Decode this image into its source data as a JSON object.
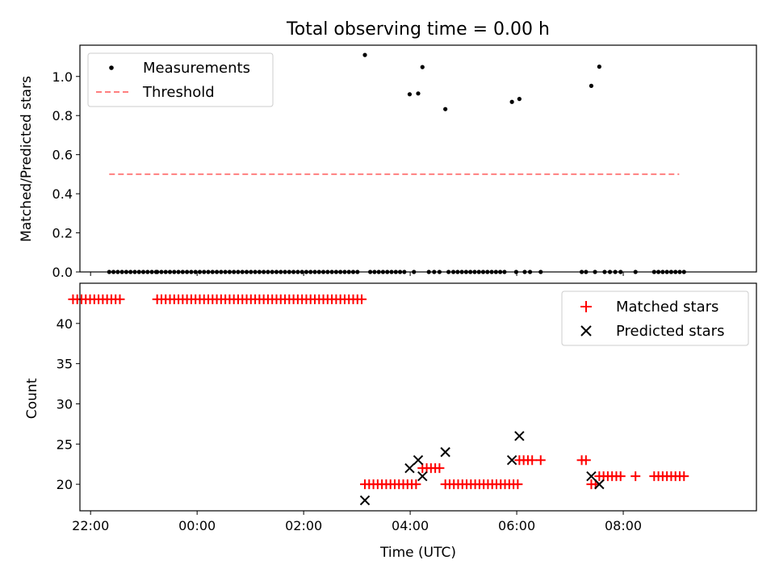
{
  "title": "Total observing time = 0.00 h",
  "chart_data": [
    {
      "type": "scatter",
      "ylabel": "Matched/Predicted stars",
      "xlim": [
        -2.2,
        10.5
      ],
      "ylim": [
        0,
        1.16
      ],
      "yticks": [
        0.0,
        0.2,
        0.4,
        0.6,
        0.8,
        1.0
      ],
      "ytick_labels": [
        "0.0",
        "0.2",
        "0.4",
        "0.6",
        "0.8",
        "1.0"
      ],
      "legend_position": "top-left",
      "series": [
        {
          "name": "Measurements",
          "marker": "dot",
          "color": "#000000",
          "x": [
            -1.65,
            -1.57,
            -1.49,
            -1.41,
            -1.33,
            -1.25,
            -1.17,
            -1.09,
            -1.01,
            -0.93,
            -0.85,
            -0.77,
            -0.75,
            -0.67,
            -0.59,
            -0.51,
            -0.43,
            -0.35,
            -0.27,
            -0.19,
            -0.11,
            -0.03,
            0.05,
            0.13,
            0.21,
            0.29,
            0.37,
            0.45,
            0.53,
            0.61,
            0.69,
            0.77,
            0.85,
            0.93,
            1.01,
            1.09,
            1.17,
            1.25,
            1.33,
            1.41,
            1.49,
            1.57,
            1.65,
            1.73,
            1.81,
            1.89,
            1.97,
            2.05,
            2.13,
            2.21,
            2.29,
            2.37,
            2.45,
            2.53,
            2.61,
            2.69,
            2.77,
            2.85,
            2.93,
            3.01,
            3.15,
            3.25,
            3.33,
            3.41,
            3.49,
            3.57,
            3.65,
            3.73,
            3.81,
            3.89,
            3.99,
            4.07,
            4.15,
            4.23,
            4.35,
            4.45,
            4.55,
            4.66,
            4.72,
            4.81,
            4.89,
            4.97,
            5.05,
            5.13,
            5.21,
            5.29,
            5.37,
            5.45,
            5.53,
            5.61,
            5.69,
            5.77,
            5.91,
            5.99,
            6.05,
            6.15,
            6.25,
            6.45,
            7.22,
            7.3,
            7.4,
            7.47,
            7.55,
            7.65,
            7.75,
            7.85,
            7.95,
            8.23,
            8.58,
            8.66,
            8.74,
            8.82,
            8.9,
            8.98,
            9.06,
            9.14
          ],
          "y": [
            0,
            0,
            0,
            0,
            0,
            0,
            0,
            0,
            0,
            0,
            0,
            0,
            0,
            0,
            0,
            0,
            0,
            0,
            0,
            0,
            0,
            0,
            0,
            0,
            0,
            0,
            0,
            0,
            0,
            0,
            0,
            0,
            0,
            0,
            0,
            0,
            0,
            0,
            0,
            0,
            0,
            0,
            0,
            0,
            0,
            0,
            0,
            0,
            0,
            0,
            0,
            0,
            0,
            0,
            0,
            0,
            0,
            0,
            0,
            0,
            1.11,
            0,
            0,
            0,
            0,
            0,
            0,
            0,
            0,
            0,
            0.909,
            0,
            0.913,
            1.048,
            0,
            0,
            0,
            0.833,
            0,
            0,
            0,
            0,
            0,
            0,
            0,
            0,
            0,
            0,
            0,
            0,
            0,
            0,
            0.87,
            0,
            0.885,
            0,
            0,
            0,
            0,
            0,
            0.952,
            0,
            1.05,
            0,
            0,
            0,
            0,
            0,
            0,
            0,
            0,
            0,
            0,
            0,
            0,
            0
          ]
        },
        {
          "name": "Threshold",
          "style": "dashed",
          "color": "#ff7f7f",
          "x": [
            -1.65,
            9.05
          ],
          "y": [
            0.5,
            0.5
          ]
        }
      ]
    },
    {
      "type": "scatter",
      "xlabel": "Time (UTC)",
      "ylabel": "Count",
      "xlim": [
        -2.2,
        10.5
      ],
      "ylim": [
        16.7,
        45.0
      ],
      "xticks": [
        -2,
        0,
        2,
        4,
        6,
        8
      ],
      "xtick_labels": [
        "22:00",
        "00:00",
        "02:00",
        "04:00",
        "06:00",
        "08:00"
      ],
      "yticks": [
        20,
        25,
        30,
        35,
        40
      ],
      "ytick_labels": [
        "20",
        "25",
        "30",
        "35",
        "40"
      ],
      "legend_position": "top-right",
      "series": [
        {
          "name": "Matched stars",
          "marker": "plus",
          "color": "#ff0000",
          "points": [
            [
              -2.33,
              43
            ],
            [
              -2.25,
              43
            ],
            [
              -2.17,
              43
            ],
            [
              -2.09,
              43
            ],
            [
              -2.01,
              43
            ],
            [
              -1.93,
              43
            ],
            [
              -1.85,
              43
            ],
            [
              -1.77,
              43
            ],
            [
              -1.69,
              43
            ],
            [
              -1.61,
              43
            ],
            [
              -1.53,
              43
            ],
            [
              -1.45,
              43
            ],
            [
              -0.75,
              43
            ],
            [
              -0.67,
              43
            ],
            [
              -0.59,
              43
            ],
            [
              -0.51,
              43
            ],
            [
              -0.43,
              43
            ],
            [
              -0.35,
              43
            ],
            [
              -0.27,
              43
            ],
            [
              -0.19,
              43
            ],
            [
              -0.11,
              43
            ],
            [
              -0.03,
              43
            ],
            [
              0.05,
              43
            ],
            [
              0.13,
              43
            ],
            [
              0.21,
              43
            ],
            [
              0.29,
              43
            ],
            [
              0.37,
              43
            ],
            [
              0.45,
              43
            ],
            [
              0.53,
              43
            ],
            [
              0.61,
              43
            ],
            [
              0.69,
              43
            ],
            [
              0.77,
              43
            ],
            [
              0.85,
              43
            ],
            [
              0.93,
              43
            ],
            [
              1.01,
              43
            ],
            [
              1.09,
              43
            ],
            [
              1.17,
              43
            ],
            [
              1.25,
              43
            ],
            [
              1.33,
              43
            ],
            [
              1.41,
              43
            ],
            [
              1.49,
              43
            ],
            [
              1.57,
              43
            ],
            [
              1.65,
              43
            ],
            [
              1.73,
              43
            ],
            [
              1.81,
              43
            ],
            [
              1.89,
              43
            ],
            [
              1.97,
              43
            ],
            [
              2.05,
              43
            ],
            [
              2.13,
              43
            ],
            [
              2.21,
              43
            ],
            [
              2.29,
              43
            ],
            [
              2.37,
              43
            ],
            [
              2.45,
              43
            ],
            [
              2.53,
              43
            ],
            [
              2.61,
              43
            ],
            [
              2.69,
              43
            ],
            [
              2.77,
              43
            ],
            [
              2.85,
              43
            ],
            [
              2.93,
              43
            ],
            [
              3.01,
              43
            ],
            [
              3.09,
              43
            ],
            [
              3.15,
              20
            ],
            [
              3.23,
              20
            ],
            [
              3.31,
              20
            ],
            [
              3.39,
              20
            ],
            [
              3.47,
              20
            ],
            [
              3.55,
              20
            ],
            [
              3.63,
              20
            ],
            [
              3.71,
              20
            ],
            [
              3.79,
              20
            ],
            [
              3.87,
              20
            ],
            [
              3.95,
              20
            ],
            [
              4.03,
              20
            ],
            [
              4.11,
              20
            ],
            [
              4.23,
              22
            ],
            [
              4.31,
              22
            ],
            [
              4.39,
              22
            ],
            [
              4.47,
              22
            ],
            [
              4.55,
              22
            ],
            [
              4.66,
              20
            ],
            [
              4.74,
              20
            ],
            [
              4.82,
              20
            ],
            [
              4.9,
              20
            ],
            [
              4.98,
              20
            ],
            [
              5.06,
              20
            ],
            [
              5.14,
              20
            ],
            [
              5.22,
              20
            ],
            [
              5.3,
              20
            ],
            [
              5.38,
              20
            ],
            [
              5.46,
              20
            ],
            [
              5.54,
              20
            ],
            [
              5.62,
              20
            ],
            [
              5.7,
              20
            ],
            [
              5.78,
              20
            ],
            [
              5.86,
              20
            ],
            [
              5.94,
              20
            ],
            [
              6.02,
              20
            ],
            [
              6.05,
              23
            ],
            [
              6.13,
              23
            ],
            [
              6.21,
              23
            ],
            [
              6.29,
              23
            ],
            [
              6.45,
              23
            ],
            [
              7.22,
              23
            ],
            [
              7.3,
              23
            ],
            [
              7.4,
              20
            ],
            [
              7.48,
              20
            ],
            [
              7.55,
              21
            ],
            [
              7.63,
              21
            ],
            [
              7.71,
              21
            ],
            [
              7.79,
              21
            ],
            [
              7.87,
              21
            ],
            [
              7.95,
              21
            ],
            [
              8.23,
              21
            ],
            [
              8.58,
              21
            ],
            [
              8.66,
              21
            ],
            [
              8.74,
              21
            ],
            [
              8.82,
              21
            ],
            [
              8.9,
              21
            ],
            [
              8.98,
              21
            ],
            [
              9.06,
              21
            ],
            [
              9.14,
              21
            ]
          ]
        },
        {
          "name": "Predicted stars",
          "marker": "x",
          "color": "#000000",
          "points": [
            [
              3.15,
              18
            ],
            [
              3.99,
              22
            ],
            [
              4.15,
              23
            ],
            [
              4.23,
              21
            ],
            [
              4.66,
              24
            ],
            [
              5.91,
              23
            ],
            [
              6.05,
              26
            ],
            [
              7.4,
              21
            ],
            [
              7.55,
              20
            ]
          ]
        }
      ]
    }
  ]
}
